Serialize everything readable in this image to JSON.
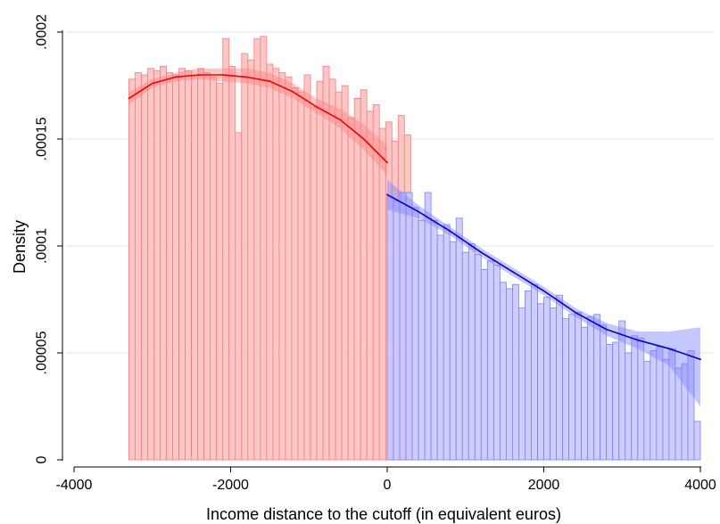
{
  "chart_data": {
    "type": "bar",
    "xlabel": "Income distance to the cutoff (in equivalent euros)",
    "ylabel": "Density",
    "xlim": [
      -4000,
      4000
    ],
    "ylim": [
      0,
      0.0002
    ],
    "x_ticks": [
      {
        "value": -4000,
        "label": "-4000"
      },
      {
        "value": -2000,
        "label": "-2000"
      },
      {
        "value": 0,
        "label": "0"
      },
      {
        "value": 2000,
        "label": "2000"
      },
      {
        "value": 4000,
        "label": "4000"
      }
    ],
    "y_ticks": [
      {
        "value": 0,
        "label": "0"
      },
      {
        "value": 5e-05,
        "label": ".00005"
      },
      {
        "value": 0.0001,
        "label": ".0001"
      },
      {
        "value": 0.00015,
        "label": ".00015"
      },
      {
        "value": 0.0002,
        "label": ".0002"
      }
    ],
    "grid": true,
    "colors": {
      "left_bars_fill": "#ffc0c0",
      "left_bars_stroke": "#f08080",
      "left_line": "#ee0000",
      "left_ci": "#ff8080",
      "right_bars_fill": "#c8c8ff",
      "right_bars_stroke": "#8080f0",
      "right_line": "#0000cc",
      "right_ci": "#8080ff",
      "grid": "#e6e6e6"
    },
    "histogram": {
      "bin_width": 80,
      "left": {
        "start": -3300,
        "densities": [
          0.000178,
          0.000181,
          0.00018,
          0.000183,
          0.000182,
          0.000184,
          0.000181,
          0.00018,
          0.000183,
          0.000182,
          0.00018,
          0.000183,
          0.000181,
          0.000179,
          0.000176,
          0.000197,
          0.000184,
          0.000153,
          0.00019,
          0.000187,
          0.000197,
          0.000198,
          0.000185,
          0.000183,
          0.000181,
          0.000179,
          0.000174,
          0.000172,
          0.00018,
          0.000165,
          0.000177,
          0.000184,
          0.000178,
          0.000172,
          0.000175,
          0.00016,
          0.000169,
          0.000173,
          0.000163,
          0.000166,
          0.000155,
          0.000158,
          0.000149,
          0.000161,
          0.000152
        ]
      },
      "right": {
        "start": 0,
        "densities": [
          0.000123,
          0.000121,
          0.000125,
          0.000125,
          0.000118,
          0.000112,
          0.000125,
          0.000112,
          0.000105,
          0.00011,
          0.000102,
          0.000113,
          9.7e-05,
          0.000101,
          9.6e-05,
          8.9e-05,
          9.3e-05,
          9.1e-05,
          8.3e-05,
          8e-05,
          8.2e-05,
          7.1e-05,
          7.9e-05,
          8.2e-05,
          7.3e-05,
          7.6e-05,
          7.1e-05,
          7.7e-05,
          6.6e-05,
          6.8e-05,
          6.9e-05,
          6.2e-05,
          6.7e-05,
          6.8e-05,
          6.3e-05,
          5.4e-05,
          5.5e-05,
          6.5e-05,
          5e-05,
          5.8e-05,
          5.7e-05,
          4.6e-05,
          5.1e-05,
          5.3e-05,
          4.7e-05,
          5.2e-05,
          4.3e-05,
          4.5e-05,
          5.1e-05,
          1.8e-05
        ]
      }
    },
    "series": [
      {
        "x": [
          -3300,
          -3000,
          -2700,
          -2400,
          -2100,
          -1800,
          -1500,
          -1200,
          -900,
          -600,
          -300,
          0
        ],
        "y": [
          0.000169,
          0.000176,
          0.000179,
          0.00018,
          0.00018,
          0.000179,
          0.000177,
          0.000172,
          0.000165,
          0.000159,
          0.00015,
          0.000139
        ],
        "ci_low": [
          0.000166,
          0.000174,
          0.000177,
          0.000178,
          0.000177,
          0.000176,
          0.000174,
          0.000169,
          0.000162,
          0.000155,
          0.000145,
          0.000133
        ],
        "ci_high": [
          0.000172,
          0.000178,
          0.000181,
          0.000183,
          0.000183,
          0.000183,
          0.000181,
          0.000176,
          0.000169,
          0.000164,
          0.000157,
          0.000147
        ]
      },
      {
        "x": [
          0,
          400,
          800,
          1200,
          1600,
          2000,
          2400,
          2800,
          3200,
          3600,
          4000
        ],
        "y": [
          0.000124,
          0.000116,
          0.000107,
          9.7e-05,
          8.8e-05,
          7.9e-05,
          6.9e-05,
          6.1e-05,
          5.6e-05,
          5.2e-05,
          4.7e-05
        ],
        "ci_low": [
          0.000117,
          0.000113,
          0.000105,
          9.5e-05,
          8.6e-05,
          7.7e-05,
          6.7e-05,
          5.8e-05,
          5.2e-05,
          4.4e-05,
          2.5e-05
        ],
        "ci_high": [
          0.000131,
          0.000119,
          0.000109,
          9.9e-05,
          9e-05,
          8.1e-05,
          7.1e-05,
          6.4e-05,
          6e-05,
          6e-05,
          6.2e-05
        ]
      }
    ]
  }
}
